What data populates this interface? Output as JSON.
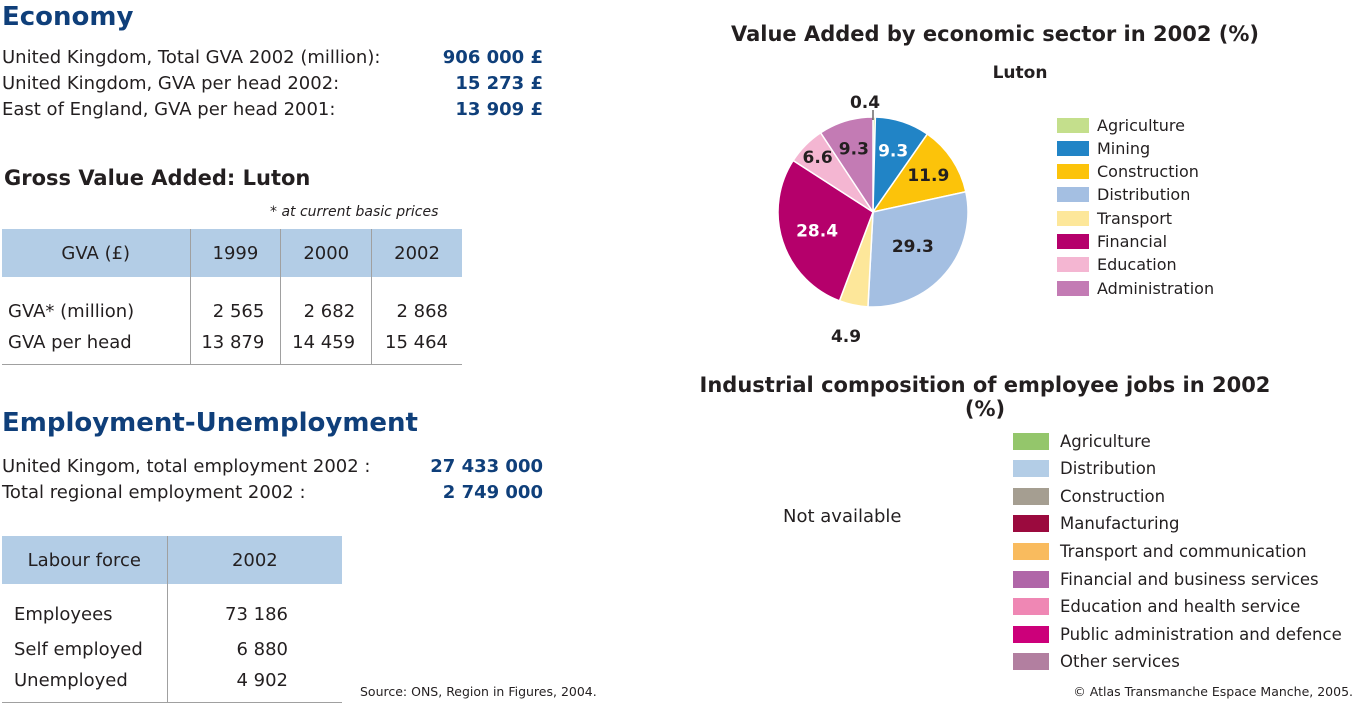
{
  "economy": {
    "title": "Economy",
    "rows": [
      {
        "label": "United Kingdom, Total GVA 2002 (million):",
        "value": "906 000 £"
      },
      {
        "label": "United Kingdom, GVA per head 2002:",
        "value": "15 273 £"
      },
      {
        "label": "East of England, GVA per head 2001:",
        "value": "13 909 £"
      }
    ]
  },
  "gva": {
    "title": "Gross Value Added: Luton",
    "note": "* at current basic prices",
    "headers": [
      "GVA (£)",
      "1999",
      "2000",
      "2002"
    ],
    "rows": [
      [
        "GVA* (million)",
        "2 565",
        "2 682",
        "2 868"
      ],
      [
        "GVA per head",
        "13 879",
        "14 459",
        "15 464"
      ]
    ]
  },
  "employment": {
    "title": "Employment-Unemployment",
    "rows": [
      {
        "label": "United Kingom, total employment 2002 :",
        "value": "27 433 000"
      },
      {
        "label": "Total regional employment 2002 :",
        "value": "2 749 000"
      }
    ]
  },
  "labour": {
    "headers": [
      "Labour force",
      "2002"
    ],
    "rows": [
      [
        "Employees",
        "73 186"
      ],
      [
        "Self employed",
        "6 880"
      ],
      [
        "Unemployed",
        "4 902"
      ]
    ]
  },
  "source": "Source: ONS, Region in Figures, 2004.",
  "copyright": "© Atlas Transmanche Espace Manche, 2005.",
  "pie": {
    "title": "Value Added by economic sector in 2002 (%)",
    "subtitle": "Luton"
  },
  "jobs": {
    "title": "Industrial composition of employee jobs in 2002 (%)",
    "status": "Not available",
    "legend": [
      {
        "label": "Agriculture",
        "color": "#94c66b"
      },
      {
        "label": "Distribution",
        "color": "#b3cde6"
      },
      {
        "label": "Construction",
        "color": "#a59e91"
      },
      {
        "label": "Manufacturing",
        "color": "#9b0a3e"
      },
      {
        "label": "Transport and communication",
        "color": "#f9bb5e"
      },
      {
        "label": "Financial and business services",
        "color": "#b066a8"
      },
      {
        "label": "Education and health service",
        "color": "#ef87b4"
      },
      {
        "label": "Public administration and defence",
        "color": "#cc007a"
      },
      {
        "label": "Other services",
        "color": "#b27fa0"
      }
    ]
  },
  "chart_data": {
    "type": "pie",
    "title": "Value Added by economic sector in 2002 (%)",
    "subtitle": "Luton",
    "labels": [
      "Agriculture",
      "Mining",
      "Construction",
      "Distribution",
      "Transport",
      "Financial",
      "Education",
      "Administration"
    ],
    "values": [
      0.4,
      9.3,
      11.9,
      29.3,
      4.9,
      28.4,
      6.6,
      9.3
    ],
    "colors": [
      "#c4df8c",
      "#2184c6",
      "#fcc30a",
      "#a4bfe2",
      "#fde79a",
      "#b5006b",
      "#f4b6d2",
      "#c37bb4"
    ],
    "label_colors": [
      "#231f20",
      "#ffffff",
      "#231f20",
      "#231f20",
      "#231f20",
      "#ffffff",
      "#231f20",
      "#231f20"
    ],
    "legend_position": "right"
  }
}
